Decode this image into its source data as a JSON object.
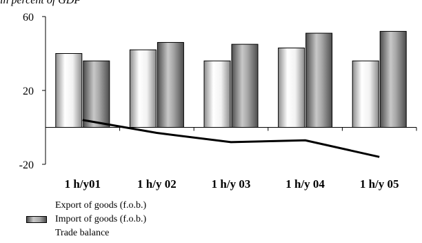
{
  "subtitle": "in percent of GDP",
  "chart_data": {
    "type": "bar",
    "categories": [
      "1 h/y01",
      "1 h/y 02",
      "1 h/y 03",
      "1 h/y 04",
      "1 h/y 05"
    ],
    "series": [
      {
        "name": "Export of goods (f.o.b.)",
        "type": "bar",
        "values": [
          40,
          42,
          36,
          43,
          36
        ],
        "color": "#d9d9d9"
      },
      {
        "name": "Import of goods (f.o.b.)",
        "type": "bar",
        "values": [
          36,
          46,
          45,
          51,
          52
        ],
        "color": "#808080"
      },
      {
        "name": "Trade balance",
        "type": "line",
        "values": [
          4,
          -3,
          -8,
          -7,
          -16
        ],
        "color": "#000000"
      }
    ],
    "ylim": [
      -20,
      60
    ],
    "yticks": [
      60,
      20,
      -20
    ],
    "xlabel": "",
    "ylabel": "",
    "grid": false,
    "legend_position": "bottom-left"
  }
}
